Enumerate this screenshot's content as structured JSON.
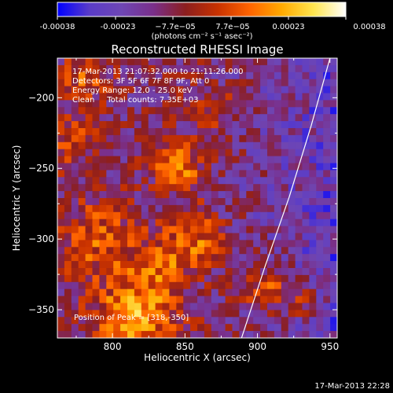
{
  "colors": {
    "background": "#000000",
    "text": "#ffffff",
    "colormap": [
      "#0000ff",
      "#5a3cc8",
      "#6e46b4",
      "#7a2f8a",
      "#8c1e1e",
      "#c83200",
      "#ff6400",
      "#ffaa00",
      "#ffe650",
      "#ffffff"
    ]
  },
  "colorbar": {
    "tick_labels": [
      "-0.00038",
      "-0.00023",
      "−7.7e−05",
      "7.7e−05",
      "0.00023",
      "0.00038"
    ],
    "units": "(photons cm⁻² s⁻¹ asec⁻²)",
    "range": [
      -0.00038,
      0.00038
    ]
  },
  "chart_data": {
    "type": "heatmap",
    "title": "Reconstructed RHESSI Image",
    "xlabel": "Heliocentric X (arcsec)",
    "ylabel": "Heliocentric Y (arcsec)",
    "xlim": [
      762,
      955
    ],
    "ylim": [
      -370,
      -172
    ],
    "x_ticks": [
      800,
      850,
      900,
      950
    ],
    "y_ticks": [
      -200,
      -250,
      -300,
      -350
    ],
    "x_tick_labels": [
      "800",
      "850",
      "900",
      "950"
    ],
    "y_tick_labels": [
      "−200",
      "−250",
      "−300",
      "−350"
    ],
    "annotations": [
      "17-Mar-2013 21:07:32.000 to 21:11:26.000",
      "Detectors: 3F 5F 6F 7F 8F 9F, Att 0",
      "Energy Range: 12.0 - 25.0 keV",
      "Clean     Total counts: 7.35E+03"
    ],
    "peak_label": "Position of Peak = [318,-350]",
    "limb_points": [
      [
        889,
        -370
      ],
      [
        905,
        -320
      ],
      [
        922,
        -270
      ],
      [
        937,
        -220
      ],
      [
        950,
        -172
      ]
    ],
    "grid": false
  },
  "footer": {
    "timestamp": "17-Mar-2013 22:28"
  }
}
